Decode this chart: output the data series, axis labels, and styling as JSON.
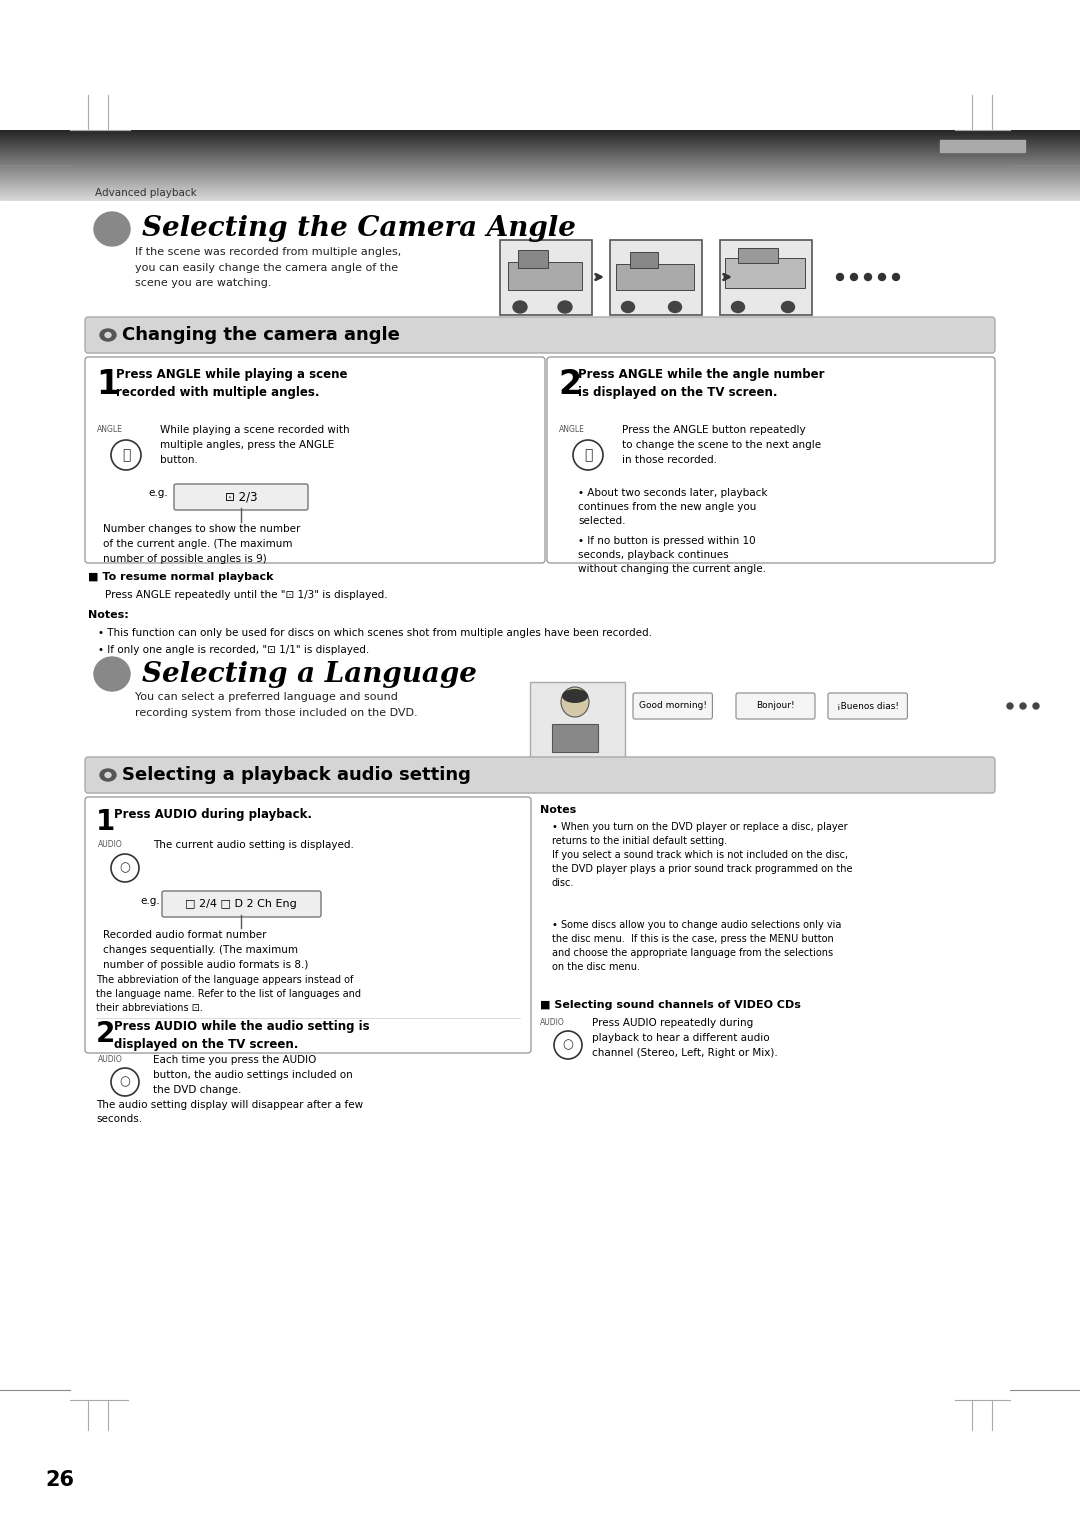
{
  "page_bg": "#ffffff",
  "page_number": "26",
  "breadcrumb": "Advanced playback",
  "section1_title": "Selecting the Camera Angle",
  "section1_desc": "If the scene was recorded from multiple angles,\nyou can easily change the camera angle of the\nscene you are watching.",
  "subsection1_title": "Changing the camera angle",
  "step1_heading": "Press ANGLE while playing a scene\nrecorded with multiple angles.",
  "step1_body": "While playing a scene recorded with\nmultiple angles, press the ANGLE\nbutton.",
  "step1_eg_label": "e.g.",
  "step1_eg_display": "⊡ 2/3",
  "step1_note": "Number changes to show the number\nof the current angle. (The maximum\nnumber of possible angles is 9)",
  "step2_heading": "Press ANGLE while the angle number\nis displayed on the TV screen.",
  "step2_body": "Press the ANGLE button repeatedly\nto change the scene to the next angle\nin those recorded.",
  "step2_bullets": [
    "About two seconds later, playback\ncontinues from the new angle you\nselected.",
    "If no button is pressed within 10\nseconds, playback continues\nwithout changing the current angle."
  ],
  "resume_heading": "■ To resume normal playback",
  "resume_body": "Press ANGLE repeatedly until the \"⊡ 1/3\" is displayed.",
  "notes_heading": "Notes:",
  "notes_bullets": [
    "This function can only be used for discs on which scenes shot from multiple angles have been recorded.",
    "If only one angle is recorded, \"⊡ 1/1\" is displayed."
  ],
  "section2_title": "Selecting a Language",
  "section2_desc": "You can select a preferred language and sound\nrecording system from those included on the DVD.",
  "subsection2_title": "Selecting a playback audio setting",
  "audio_step1_heading": "Press AUDIO during playback.",
  "audio_step1_body": "The current audio setting is displayed.",
  "audio_step1_eg": "e.g.",
  "audio_step1_display": "□ 2/4 □ D 2 Ch Eng",
  "audio_step1_note": "Recorded audio format number\nchanges sequentially. (The maximum\nnumber of possible audio formats is 8.)",
  "audio_step1_abbrev": "The abbreviation of the language appears instead of\nthe language name. Refer to the list of languages and\ntheir abbreviations ⊡.",
  "audio_step2_heading": "Press AUDIO while the audio setting is\ndisplayed on the TV screen.",
  "audio_step2_body": "Each time you press the AUDIO\nbutton, the audio settings included on\nthe DVD change.",
  "audio_step2_note": "The audio setting display will disappear after a few\nseconds.",
  "notes2_heading": "Notes",
  "notes2_bullet1": "When you turn on the DVD player or replace a disc, player\nreturns to the initial default setting.\nIf you select a sound track which is not included on the disc,\nthe DVD player plays a prior sound track programmed on the\ndisc.",
  "notes2_bullet2": "Some discs allow you to change audio selections only via\nthe disc menu.  If this is the case, press the MENU button\nand choose the appropriate language from the selections\non the disc menu.",
  "selecting_sound_heading": "■ Selecting sound channels of VIDEO CDs",
  "selecting_sound_body": "Press AUDIO repeatedly during\nplayback to hear a different audio\nchannel (Stereo, Left, Right or Mix)."
}
